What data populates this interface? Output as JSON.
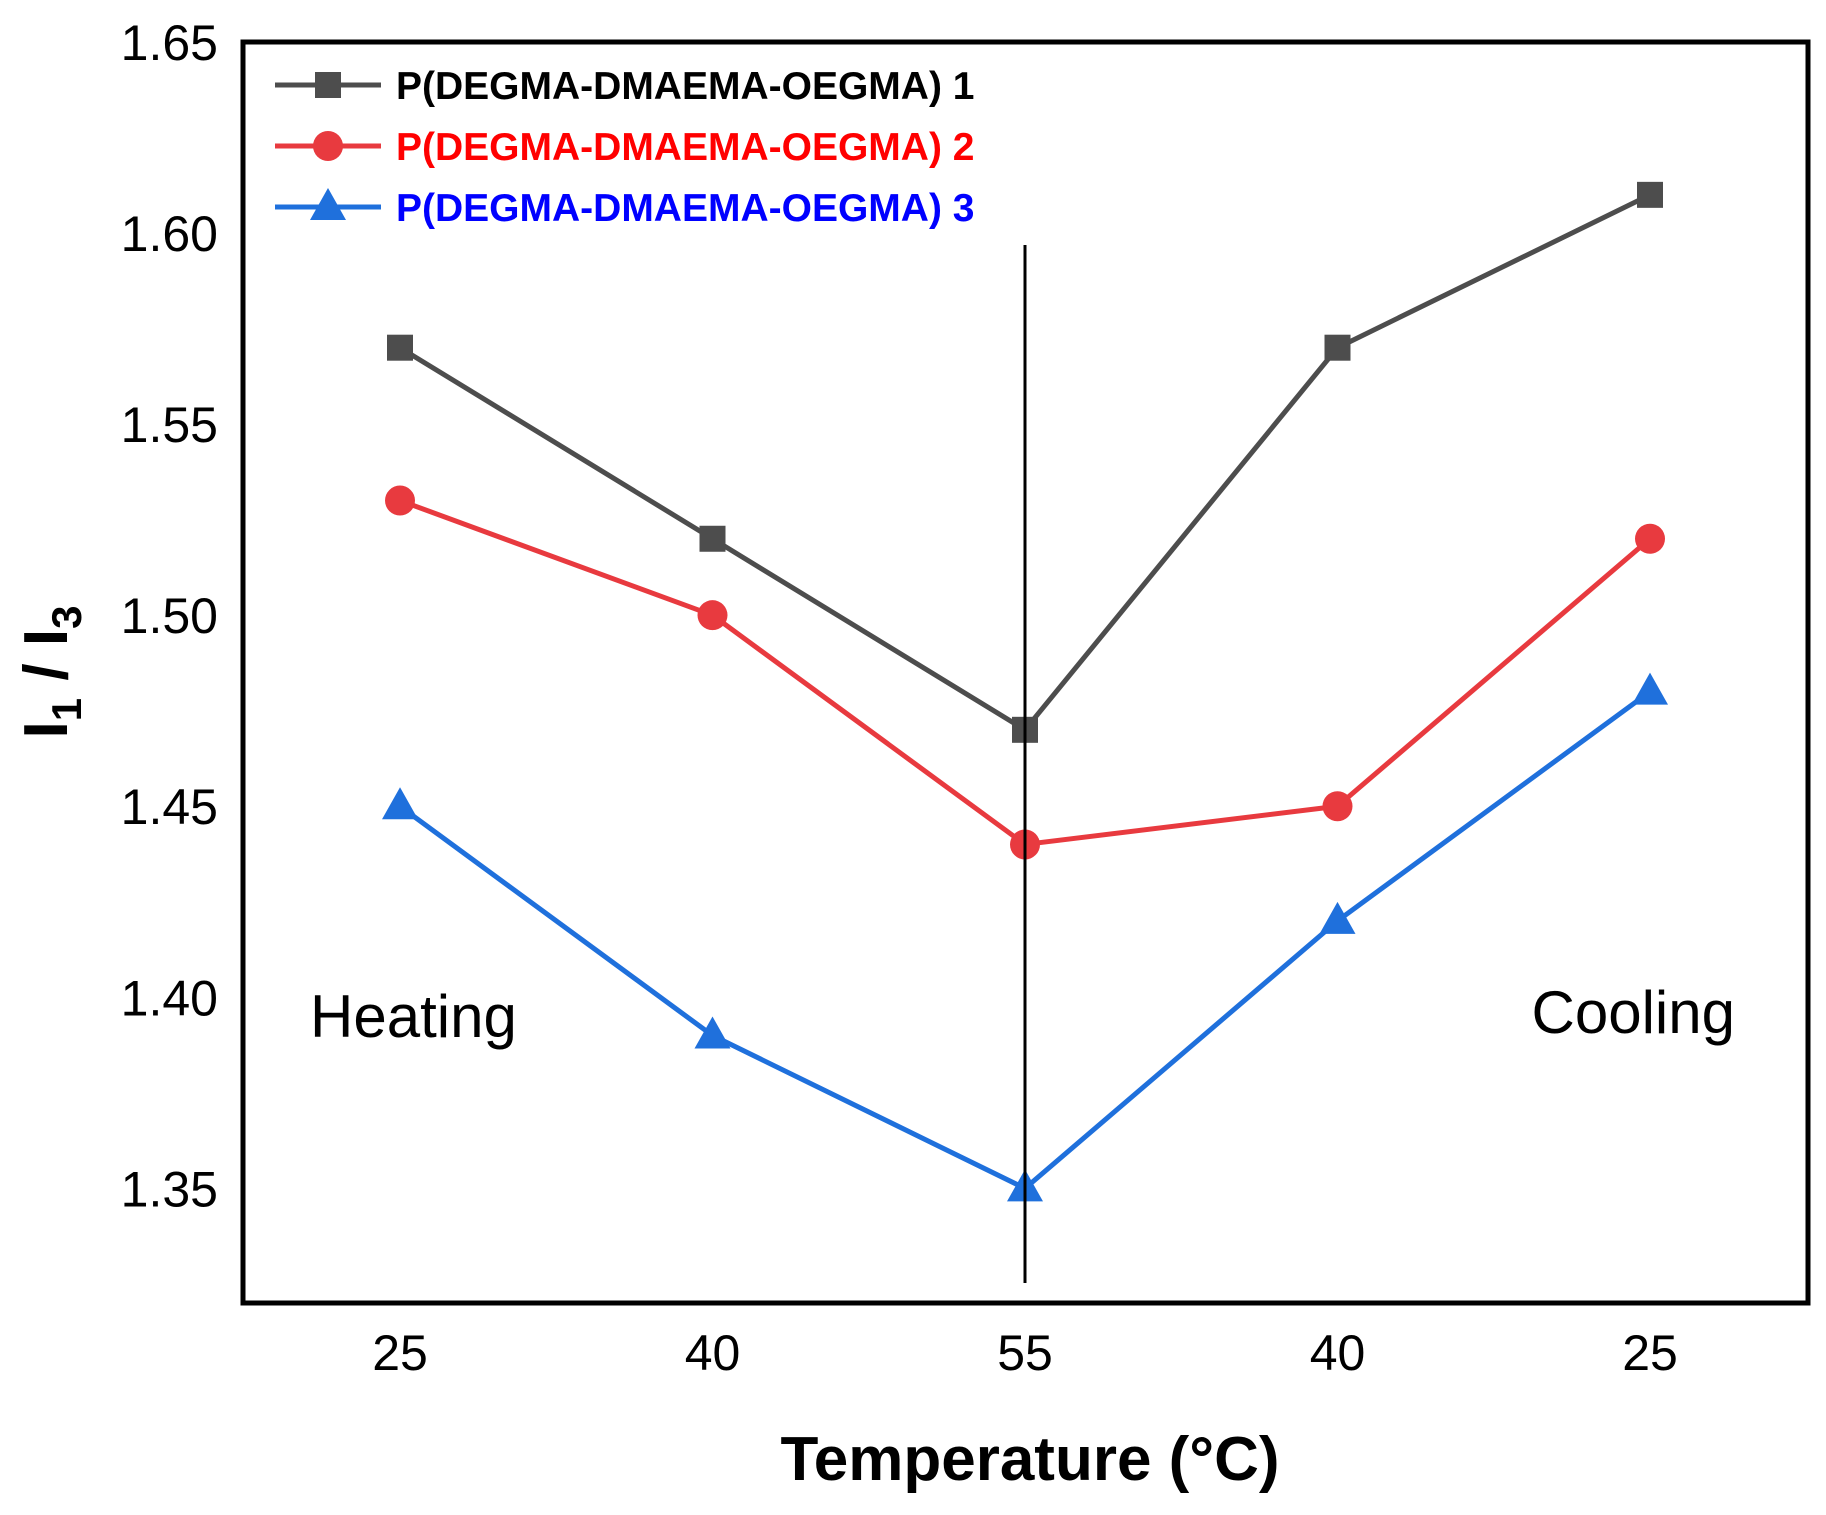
{
  "chart_data": {
    "type": "line",
    "categories": [
      "25",
      "40",
      "55",
      "40",
      "25"
    ],
    "xlabel": "Temperature (°C)",
    "ylabel_main": "I",
    "ylabel_sub1": "1",
    "ylabel_sep": " / ",
    "ylabel_sub2": "3",
    "ylim": [
      1.32,
      1.65
    ],
    "yticks": [
      "1.35",
      "1.40",
      "1.45",
      "1.50",
      "1.55",
      "1.60",
      "1.65"
    ],
    "ytick_values": [
      1.35,
      1.4,
      1.45,
      1.5,
      1.55,
      1.6,
      1.65
    ],
    "grid": false,
    "legend_position": "top-left",
    "divider_category_index": 2,
    "annotations": {
      "left": "Heating",
      "right": "Cooling"
    },
    "series": [
      {
        "name": "P(DEGMA-DMAEMA-OEGMA) 1",
        "marker": "square",
        "color": "#4d4d4d",
        "label_color": "#000000",
        "values": [
          1.57,
          1.52,
          1.47,
          1.57,
          1.61
        ]
      },
      {
        "name": "P(DEGMA-DMAEMA-OEGMA) 2",
        "marker": "circle",
        "color": "#e83a3f",
        "label_color": "#ff0000",
        "values": [
          1.53,
          1.5,
          1.44,
          1.45,
          1.52
        ]
      },
      {
        "name": "P(DEGMA-DMAEMA-OEGMA) 3",
        "marker": "triangle",
        "color": "#1f70dc",
        "label_color": "#0000ff",
        "values": [
          1.45,
          1.39,
          1.35,
          1.42,
          1.48
        ]
      }
    ]
  }
}
